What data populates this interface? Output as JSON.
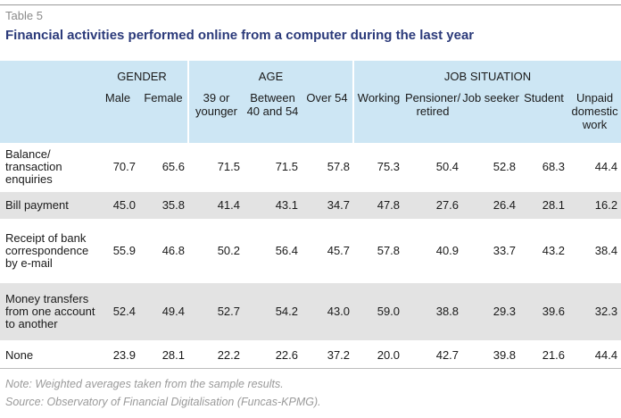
{
  "table_number": "Table 5",
  "title": "Financial activities performed online from a computer during the last year",
  "groups": [
    "GENDER",
    "AGE",
    "JOB SITUATION"
  ],
  "columns": [
    "Male",
    "Female",
    "39 or younger",
    "Between 40 and 54",
    "Over 54",
    "Working",
    "Pensioner/ retired",
    "Job seeker",
    "Student",
    "Unpaid domestic work"
  ],
  "rows": [
    {
      "label": "Balance/ transaction enquiries",
      "values": [
        "70.7",
        "65.6",
        "71.5",
        "71.5",
        "57.8",
        "75.3",
        "50.4",
        "52.8",
        "68.3",
        "44.4"
      ]
    },
    {
      "label": "Bill payment",
      "values": [
        "45.0",
        "35.8",
        "41.4",
        "43.1",
        "34.7",
        "47.8",
        "27.6",
        "26.4",
        "28.1",
        "16.2"
      ]
    },
    {
      "label": "Receipt of bank correspondence by e-mail",
      "values": [
        "55.9",
        "46.8",
        "50.2",
        "56.4",
        "45.7",
        "57.8",
        "40.9",
        "33.7",
        "43.2",
        "38.4"
      ]
    },
    {
      "label": "Money transfers from one account to another",
      "values": [
        "52.4",
        "49.4",
        "52.7",
        "54.2",
        "43.0",
        "59.0",
        "38.8",
        "29.3",
        "39.6",
        "32.3"
      ]
    },
    {
      "label": "None",
      "values": [
        "23.9",
        "28.1",
        "22.2",
        "22.6",
        "37.2",
        "20.0",
        "42.7",
        "39.8",
        "21.6",
        "44.4"
      ]
    }
  ],
  "note": "Note: Weighted averages taken from the sample results.",
  "source": "Source: Observatory of Financial Digitalisation (Funcas-KPMG)."
}
